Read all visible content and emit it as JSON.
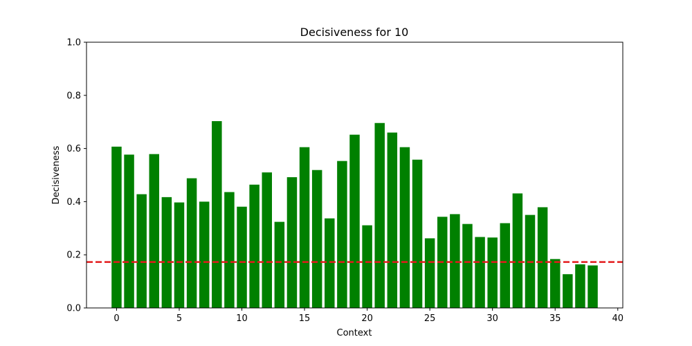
{
  "chart_data": {
    "type": "bar",
    "title": "Decisiveness for 10",
    "xlabel": "Context",
    "ylabel": "Decisiveness",
    "x": [
      0,
      1,
      2,
      3,
      4,
      5,
      6,
      7,
      8,
      9,
      10,
      11,
      12,
      13,
      14,
      15,
      16,
      17,
      18,
      19,
      20,
      21,
      22,
      23,
      24,
      25,
      26,
      27,
      28,
      29,
      30,
      31,
      32,
      33,
      34,
      35,
      36,
      37,
      38
    ],
    "values": [
      0.607,
      0.577,
      0.428,
      0.579,
      0.417,
      0.397,
      0.488,
      0.4,
      0.703,
      0.436,
      0.381,
      0.464,
      0.51,
      0.324,
      0.492,
      0.605,
      0.519,
      0.337,
      0.553,
      0.652,
      0.311,
      0.696,
      0.66,
      0.605,
      0.558,
      0.262,
      0.343,
      0.353,
      0.316,
      0.267,
      0.265,
      0.319,
      0.431,
      0.35,
      0.379,
      0.184,
      0.127,
      0.164,
      0.16
    ],
    "xlim": [
      -2.4,
      40.4
    ],
    "ylim": [
      0,
      1.0
    ],
    "xticks": [
      0,
      5,
      10,
      15,
      20,
      25,
      30,
      35,
      40
    ],
    "yticks": [
      0.0,
      0.2,
      0.4,
      0.6,
      0.8,
      1.0
    ],
    "xtick_labels": [
      "0",
      "5",
      "10",
      "15",
      "20",
      "25",
      "30",
      "35",
      "40"
    ],
    "ytick_labels": [
      "0.0",
      "0.2",
      "0.4",
      "0.6",
      "0.8",
      "1.0"
    ],
    "threshold": 0.173,
    "bar_color": "#008000",
    "threshold_color": "#e31a1c",
    "threshold_style": "dashed",
    "grid": false,
    "legend": false
  }
}
